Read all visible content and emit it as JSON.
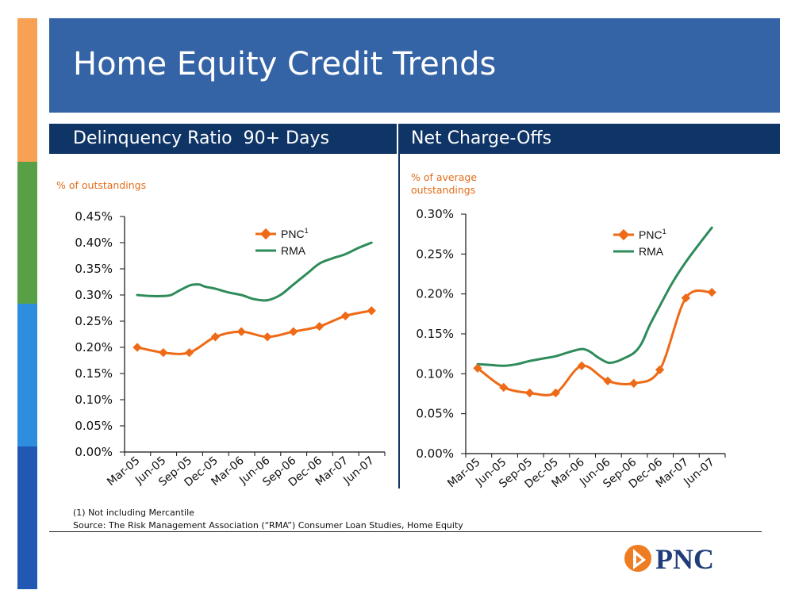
{
  "title": "Home Equity Credit Trends",
  "colors": {
    "title_bar": "#3463a6",
    "section_bar": "#0f3466",
    "pnc_series": "#ee6a16",
    "rma_series": "#2e8b5a",
    "unit_label": "#e36c1b",
    "stripe": [
      "#f7a155",
      "#57a046",
      "#2f8de0",
      "#2058b4"
    ]
  },
  "left_panel": {
    "header": "Delinquency Ratio  90+ Days",
    "unit_label": "% of outstandings"
  },
  "right_panel": {
    "header": "Net Charge-Offs",
    "unit_label_lines": [
      "% of average",
      "outstandings"
    ]
  },
  "footnotes": {
    "note1": "(1) Not including Mercantile",
    "source": "Source:  The Risk Management Association (“RMA”) Consumer Loan Studies, Home Equity"
  },
  "logo": {
    "text": "PNC"
  },
  "chart_data": [
    {
      "type": "line",
      "categories": [
        "Mar-05",
        "Jun-05",
        "Sep-05",
        "Dec-05",
        "Mar-06",
        "Jun-06",
        "Sep-06",
        "Dec-06",
        "Mar-07",
        "Jun-07"
      ],
      "y_ticks": [
        "0.00%",
        "0.05%",
        "0.10%",
        "0.15%",
        "0.20%",
        "0.25%",
        "0.30%",
        "0.35%",
        "0.40%",
        "0.45%"
      ],
      "ylim": [
        0,
        0.45
      ],
      "legend": {
        "placement": "top-right"
      },
      "series": [
        {
          "name": "PNC",
          "superscript": "1",
          "marker": "diamond",
          "x": [
            0,
            1,
            2,
            3,
            4,
            5,
            6,
            7,
            8,
            9
          ],
          "values": [
            0.2,
            0.19,
            0.19,
            0.22,
            0.23,
            0.22,
            0.23,
            0.24,
            0.26,
            0.27
          ]
        },
        {
          "name": "RMA",
          "x": [
            0,
            0.5,
            1,
            1.3,
            1.6,
            2,
            2.2,
            2.4,
            2.6,
            3,
            3.5,
            4,
            4.5,
            5,
            5.5,
            6,
            6.5,
            7,
            7.5,
            8,
            8.5,
            9
          ],
          "values": [
            0.3,
            0.298,
            0.298,
            0.3,
            0.308,
            0.318,
            0.32,
            0.32,
            0.316,
            0.312,
            0.305,
            0.3,
            0.292,
            0.29,
            0.3,
            0.32,
            0.34,
            0.36,
            0.37,
            0.378,
            0.39,
            0.4
          ]
        }
      ]
    },
    {
      "type": "line",
      "categories": [
        "Mar-05",
        "Jun-05",
        "Sep-05",
        "Dec-05",
        "Mar-06",
        "Jun-06",
        "Sep-06",
        "Dec-06",
        "Mar-07",
        "Jun-07"
      ],
      "y_ticks": [
        "0.00%",
        "0.05%",
        "0.10%",
        "0.15%",
        "0.20%",
        "0.25%",
        "0.30%"
      ],
      "ylim": [
        0,
        0.3
      ],
      "legend": {
        "placement": "top-right"
      },
      "series": [
        {
          "name": "PNC",
          "superscript": "1",
          "marker": "diamond",
          "x": [
            0,
            1,
            2,
            3,
            4,
            5,
            6,
            7,
            8,
            9
          ],
          "values": [
            0.107,
            0.083,
            0.076,
            0.076,
            0.11,
            0.091,
            0.088,
            0.105,
            0.195,
            0.202
          ]
        },
        {
          "name": "RMA",
          "x": [
            0,
            0.5,
            1,
            1.5,
            2,
            2.5,
            3,
            3.5,
            4,
            4.3,
            4.6,
            5,
            5.3,
            5.6,
            6,
            6.3,
            6.6,
            7,
            7.5,
            8,
            8.5,
            9
          ],
          "values": [
            0.112,
            0.111,
            0.11,
            0.112,
            0.116,
            0.119,
            0.122,
            0.127,
            0.131,
            0.128,
            0.121,
            0.114,
            0.115,
            0.119,
            0.126,
            0.138,
            0.16,
            0.185,
            0.215,
            0.24,
            0.262,
            0.283
          ]
        }
      ]
    }
  ]
}
